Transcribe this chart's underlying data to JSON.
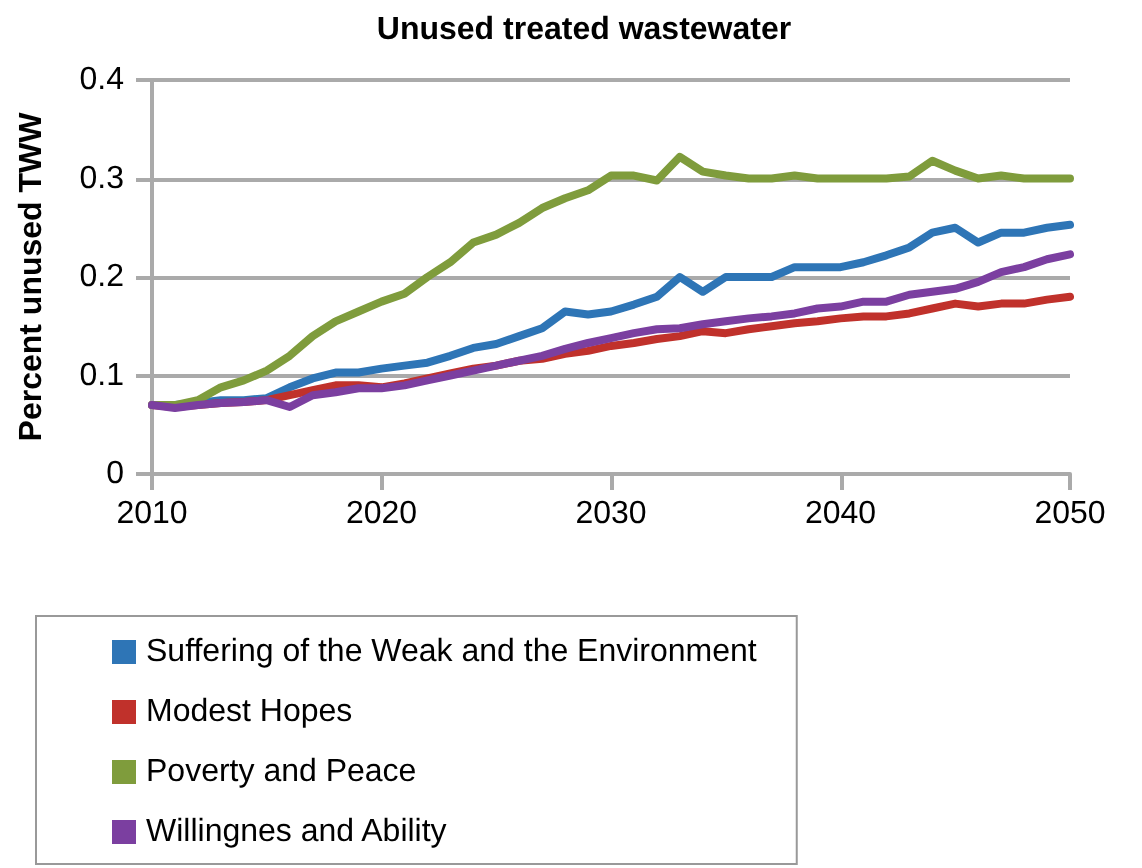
{
  "chart_data": {
    "type": "line",
    "title": "Unused treated wastewater",
    "ylabel": "Percent unused TWW",
    "x": [
      2010,
      2011,
      2012,
      2013,
      2014,
      2015,
      2016,
      2017,
      2018,
      2019,
      2020,
      2021,
      2022,
      2023,
      2024,
      2025,
      2026,
      2027,
      2028,
      2029,
      2030,
      2031,
      2032,
      2033,
      2034,
      2035,
      2036,
      2037,
      2038,
      2039,
      2040,
      2041,
      2042,
      2043,
      2044,
      2045,
      2046,
      2047,
      2048,
      2049,
      2050
    ],
    "series": [
      {
        "name": "Suffering of the Weak and the Environment",
        "color": "#2e75b6",
        "values": [
          0.07,
          0.07,
          0.072,
          0.075,
          0.075,
          0.077,
          0.088,
          0.097,
          0.103,
          0.103,
          0.107,
          0.11,
          0.113,
          0.12,
          0.128,
          0.132,
          0.14,
          0.148,
          0.165,
          0.162,
          0.165,
          0.172,
          0.18,
          0.2,
          0.185,
          0.2,
          0.2,
          0.2,
          0.21,
          0.21,
          0.21,
          0.215,
          0.222,
          0.23,
          0.245,
          0.25,
          0.235,
          0.245,
          0.245,
          0.25,
          0.253
        ]
      },
      {
        "name": "Modest Hopes",
        "color": "#c0312b",
        "values": [
          0.07,
          0.068,
          0.07,
          0.072,
          0.073,
          0.075,
          0.08,
          0.085,
          0.09,
          0.09,
          0.088,
          0.092,
          0.097,
          0.102,
          0.107,
          0.11,
          0.115,
          0.117,
          0.122,
          0.125,
          0.13,
          0.133,
          0.137,
          0.14,
          0.145,
          0.143,
          0.147,
          0.15,
          0.153,
          0.155,
          0.158,
          0.16,
          0.16,
          0.163,
          0.168,
          0.173,
          0.17,
          0.173,
          0.173,
          0.177,
          0.18
        ]
      },
      {
        "name": "Poverty and Peace",
        "color": "#7f9c3c",
        "values": [
          0.07,
          0.07,
          0.075,
          0.088,
          0.095,
          0.105,
          0.12,
          0.14,
          0.155,
          0.165,
          0.175,
          0.183,
          0.2,
          0.215,
          0.235,
          0.243,
          0.255,
          0.27,
          0.28,
          0.288,
          0.303,
          0.303,
          0.298,
          0.322,
          0.307,
          0.303,
          0.3,
          0.3,
          0.303,
          0.3,
          0.3,
          0.3,
          0.3,
          0.302,
          0.318,
          0.308,
          0.3,
          0.303,
          0.3,
          0.3,
          0.3
        ]
      },
      {
        "name": "Willingnes and Ability",
        "color": "#7b3fa0",
        "values": [
          0.07,
          0.067,
          0.07,
          0.072,
          0.073,
          0.075,
          0.068,
          0.08,
          0.083,
          0.087,
          0.087,
          0.09,
          0.095,
          0.1,
          0.105,
          0.11,
          0.115,
          0.12,
          0.127,
          0.133,
          0.138,
          0.143,
          0.147,
          0.148,
          0.152,
          0.155,
          0.158,
          0.16,
          0.163,
          0.168,
          0.17,
          0.175,
          0.175,
          0.182,
          0.185,
          0.188,
          0.195,
          0.205,
          0.21,
          0.218,
          0.223
        ]
      }
    ],
    "xlim": [
      2010,
      2050
    ],
    "xticks": [
      2010,
      2020,
      2030,
      2040,
      2050
    ],
    "ylim": [
      0,
      0.4
    ],
    "yticks": [
      0,
      0.1,
      0.2,
      0.3,
      0.4
    ],
    "grid": "y",
    "legend": "bottom",
    "marker": "none",
    "line_style": "solid"
  }
}
